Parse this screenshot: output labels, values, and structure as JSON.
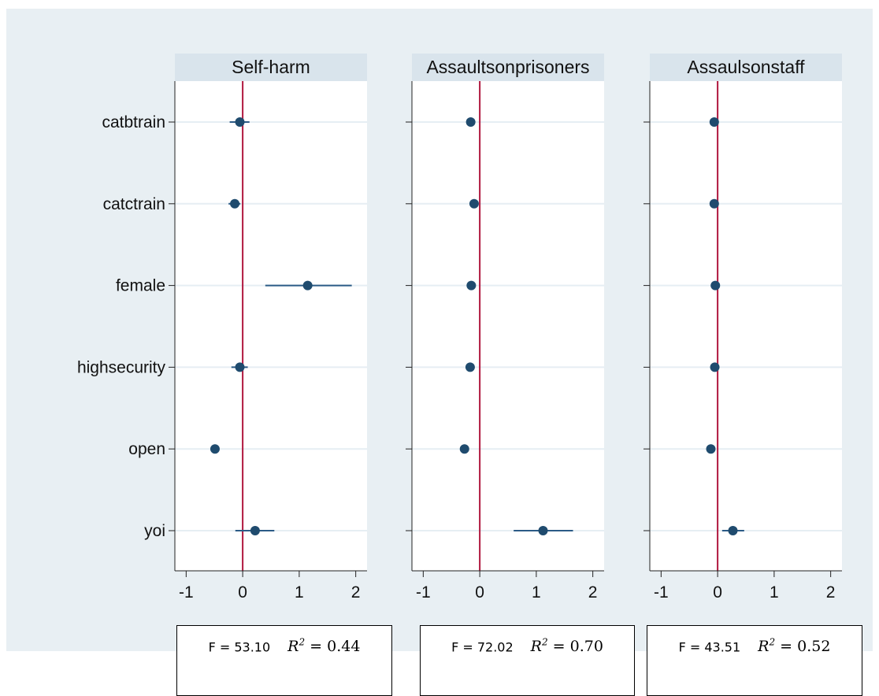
{
  "chart_data": {
    "type": "coefficient-plot",
    "categories": [
      "catbtrain",
      "catctrain",
      "female",
      "highsecurity",
      "open",
      "yoi"
    ],
    "xlim": [
      -1.2,
      2.2
    ],
    "xticks": [
      -1,
      0,
      1,
      2
    ],
    "reference_line_x": 0,
    "grid": true,
    "colors": {
      "outer_background": "#e8eff3",
      "panel_background": "#ffffff",
      "strip": "#d9e4ec",
      "marker": "#1f4b6e",
      "ci_line": "#2b5b86",
      "reference_line": "#b0173e",
      "grid": "#e6eef3"
    },
    "panels": [
      {
        "title": "Self-harm",
        "points": [
          {
            "label": "catbtrain",
            "estimate": -0.05,
            "ci": [
              -0.23,
              0.12
            ]
          },
          {
            "label": "catctrain",
            "estimate": -0.14,
            "ci": [
              -0.25,
              -0.04
            ]
          },
          {
            "label": "female",
            "estimate": 1.15,
            "ci": [
              0.4,
              1.93
            ]
          },
          {
            "label": "highsecurity",
            "estimate": -0.05,
            "ci": [
              -0.2,
              0.09
            ]
          },
          {
            "label": "open",
            "estimate": -0.49,
            "ci": [
              -0.55,
              -0.43
            ]
          },
          {
            "label": "yoi",
            "estimate": 0.22,
            "ci": [
              -0.13,
              0.56
            ]
          }
        ]
      },
      {
        "title": "Assaultsonprisoners",
        "points": [
          {
            "label": "catbtrain",
            "estimate": -0.16,
            "ci": [
              -0.19,
              -0.13
            ]
          },
          {
            "label": "catctrain",
            "estimate": -0.1,
            "ci": [
              -0.13,
              -0.07
            ]
          },
          {
            "label": "female",
            "estimate": -0.15,
            "ci": [
              -0.18,
              -0.12
            ]
          },
          {
            "label": "highsecurity",
            "estimate": -0.17,
            "ci": [
              -0.2,
              -0.14
            ]
          },
          {
            "label": "open",
            "estimate": -0.27,
            "ci": [
              -0.3,
              -0.24
            ]
          },
          {
            "label": "yoi",
            "estimate": 1.12,
            "ci": [
              0.6,
              1.65
            ]
          }
        ]
      },
      {
        "title": "Assaulsonstaff",
        "points": [
          {
            "label": "catbtrain",
            "estimate": -0.06,
            "ci": [
              -0.08,
              -0.04
            ]
          },
          {
            "label": "catctrain",
            "estimate": -0.06,
            "ci": [
              -0.08,
              -0.04
            ]
          },
          {
            "label": "female",
            "estimate": -0.04,
            "ci": [
              -0.06,
              -0.02
            ]
          },
          {
            "label": "highsecurity",
            "estimate": -0.05,
            "ci": [
              -0.07,
              -0.03
            ]
          },
          {
            "label": "open",
            "estimate": -0.12,
            "ci": [
              -0.15,
              -0.09
            ]
          },
          {
            "label": "yoi",
            "estimate": 0.27,
            "ci": [
              0.08,
              0.47
            ]
          }
        ]
      }
    ]
  },
  "stats": [
    {
      "f": "F = 53.10",
      "r2_symbol": "R",
      "r2_exp": "2",
      "r2_value": "= 0.44"
    },
    {
      "f": "F = 72.02",
      "r2_symbol": "R",
      "r2_exp": "2",
      "r2_value": "= 0.70"
    },
    {
      "f": "F = 43.51",
      "r2_symbol": "R",
      "r2_exp": "2",
      "r2_value": "= 0.52"
    }
  ]
}
